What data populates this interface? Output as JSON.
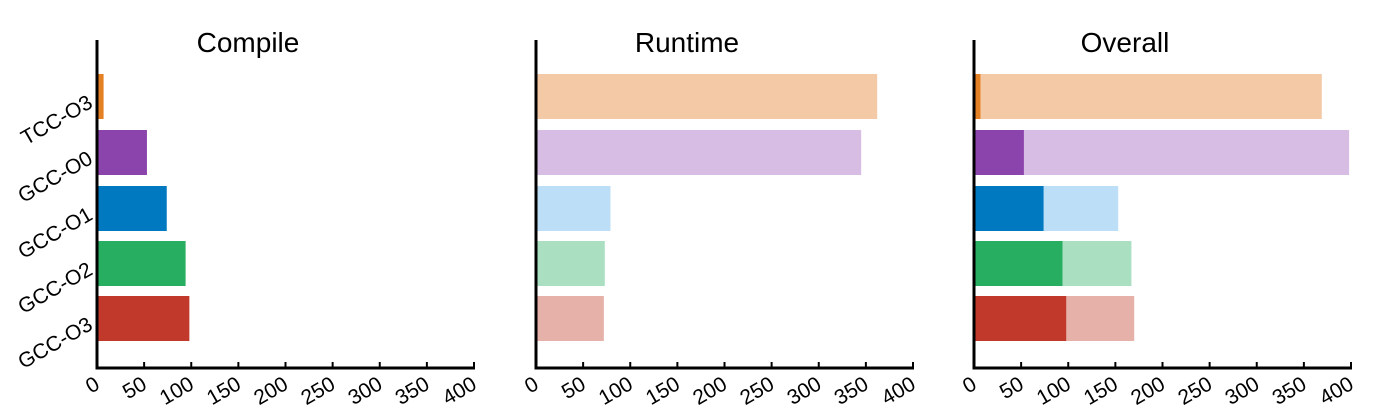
{
  "chart_data": {
    "type": "bar",
    "orientation": "horizontal",
    "stacked_in_overall": true,
    "categories": [
      "TCC-O3",
      "GCC-O0",
      "GCC-O1",
      "GCC-O2",
      "GCC-O3"
    ],
    "colors": {
      "dark": [
        "#e58125",
        "#8c44ad",
        "#0179c1",
        "#27ae60",
        "#c0392b"
      ],
      "light": [
        "#f4c9a6",
        "#d7bde3",
        "#bcdef7",
        "#aae0c1",
        "#e6b1a9"
      ]
    },
    "xlim": [
      0,
      400
    ],
    "xticks": [
      "0",
      "50",
      "100",
      "150",
      "200",
      "250",
      "300",
      "350",
      "400"
    ],
    "grid": false,
    "panels": [
      {
        "title": "Compile",
        "series": [
          {
            "values": [
              7,
              53,
              74,
              94,
              98
            ],
            "shade": "dark"
          }
        ]
      },
      {
        "title": "Runtime",
        "series": [
          {
            "values": [
              362,
              345,
              79,
              73,
              72
            ],
            "shade": "light"
          }
        ]
      },
      {
        "title": "Overall",
        "series": [
          {
            "values": [
              7,
              53,
              74,
              94,
              98
            ],
            "shade": "dark"
          },
          {
            "values": [
              362,
              345,
              79,
              73,
              72
            ],
            "shade": "light"
          }
        ]
      }
    ]
  }
}
